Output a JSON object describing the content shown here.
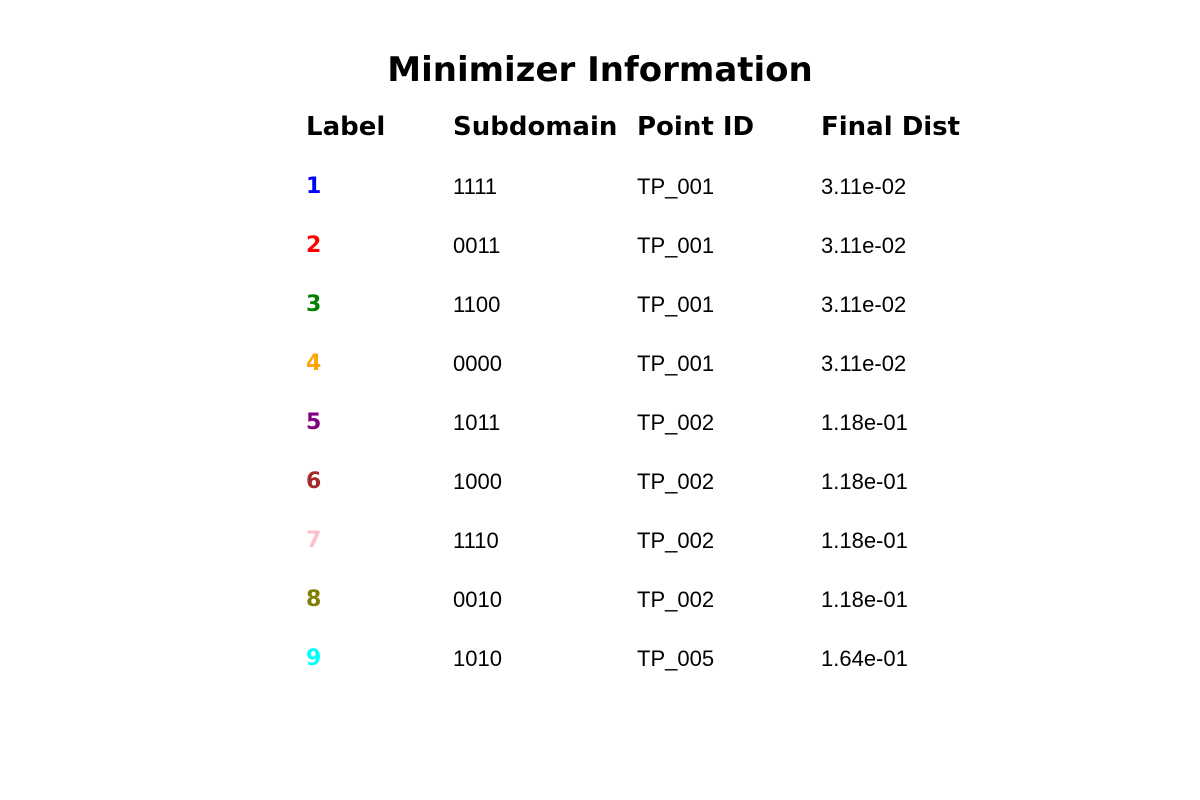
{
  "chart_data": {
    "type": "table",
    "title": "Minimizer Information",
    "columns": [
      "Label",
      "Subdomain",
      "Point ID",
      "Final Dist"
    ],
    "rows": [
      {
        "label": "1",
        "subdomain": "1111",
        "point_id": "TP_001",
        "final_dist": "3.11e-02",
        "color": "#0000ff"
      },
      {
        "label": "2",
        "subdomain": "0011",
        "point_id": "TP_001",
        "final_dist": "3.11e-02",
        "color": "#ff0000"
      },
      {
        "label": "3",
        "subdomain": "1100",
        "point_id": "TP_001",
        "final_dist": "3.11e-02",
        "color": "#008000"
      },
      {
        "label": "4",
        "subdomain": "0000",
        "point_id": "TP_001",
        "final_dist": "3.11e-02",
        "color": "#ffa500"
      },
      {
        "label": "5",
        "subdomain": "1011",
        "point_id": "TP_002",
        "final_dist": "1.18e-01",
        "color": "#800080"
      },
      {
        "label": "6",
        "subdomain": "1000",
        "point_id": "TP_002",
        "final_dist": "1.18e-01",
        "color": "#a52a2a"
      },
      {
        "label": "7",
        "subdomain": "1110",
        "point_id": "TP_002",
        "final_dist": "1.18e-01",
        "color": "#ffc0cb"
      },
      {
        "label": "8",
        "subdomain": "0010",
        "point_id": "TP_002",
        "final_dist": "1.18e-01",
        "color": "#808000"
      },
      {
        "label": "9",
        "subdomain": "1010",
        "point_id": "TP_005",
        "final_dist": "1.64e-01",
        "color": "#00ffff"
      }
    ]
  }
}
